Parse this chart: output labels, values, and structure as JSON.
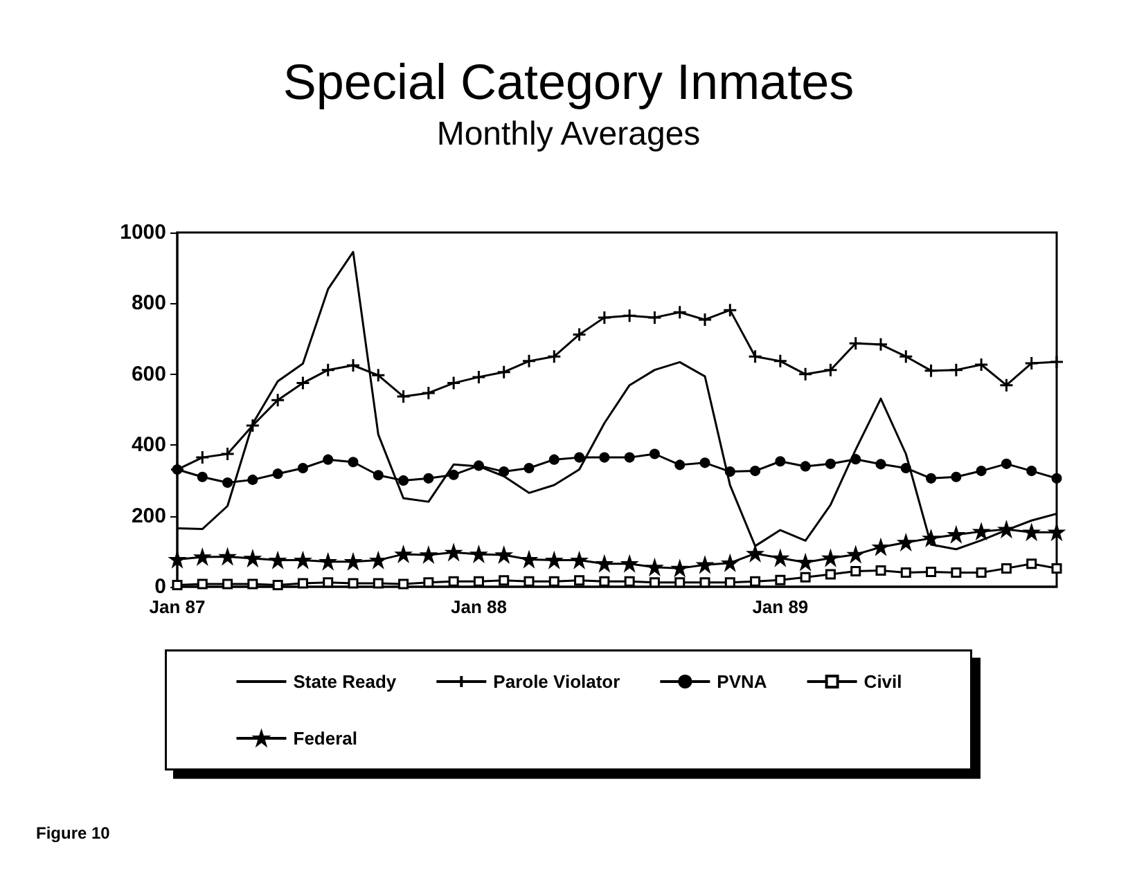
{
  "chart_data": {
    "type": "line",
    "title": "Special Category Inmates",
    "subtitle": "Monthly Averages",
    "categories": [
      "Jan 87",
      null,
      null,
      null,
      null,
      null,
      null,
      null,
      null,
      null,
      null,
      null,
      "Jan 88",
      null,
      null,
      null,
      null,
      null,
      null,
      null,
      null,
      null,
      null,
      null,
      "Jan 89",
      null,
      null,
      null,
      null,
      null,
      null,
      null,
      null,
      null,
      null,
      null
    ],
    "series": [
      {
        "name": "State Ready",
        "color": "#000000",
        "marker": "none",
        "values": [
          165,
          163,
          228,
          460,
          580,
          630,
          840,
          945,
          430,
          250,
          240,
          345,
          340,
          312,
          265,
          287,
          331,
          462,
          569,
          612,
          634,
          594,
          287,
          115,
          160,
          130,
          231,
          387,
          531,
          375,
          119,
          106,
          131,
          160,
          187,
          206
        ]
      },
      {
        "name": "Parole Violator",
        "color": "#000000",
        "marker": "cross",
        "values": [
          331,
          365,
          375,
          455,
          527,
          575,
          612,
          625,
          597,
          537,
          547,
          575,
          592,
          606,
          637,
          650,
          712,
          760,
          765,
          760,
          775,
          754,
          781,
          650,
          637,
          600,
          612,
          687,
          684,
          650,
          610,
          612,
          627,
          569,
          631,
          635
        ]
      },
      {
        "name": "PVNA",
        "color": "#000000",
        "marker": "circle",
        "values": [
          331,
          310,
          294,
          302,
          319,
          335,
          359,
          352,
          315,
          300,
          306,
          316,
          342,
          325,
          335,
          359,
          365,
          365,
          365,
          375,
          344,
          350,
          325,
          327,
          354,
          340,
          347,
          360,
          346,
          335,
          306,
          310,
          327,
          347,
          327,
          306
        ]
      },
      {
        "name": "Civil",
        "color": "#000000",
        "marker": "square",
        "values": [
          5,
          8,
          8,
          8,
          5,
          10,
          12,
          10,
          10,
          8,
          12,
          15,
          15,
          18,
          15,
          15,
          18,
          15,
          15,
          12,
          12,
          12,
          12,
          15,
          19,
          27,
          35,
          44,
          46,
          40,
          42,
          40,
          40,
          52,
          65,
          52
        ]
      },
      {
        "name": "Federal",
        "color": "#000000",
        "marker": "star",
        "values": [
          77,
          84,
          85,
          80,
          75,
          75,
          71,
          71,
          75,
          92,
          90,
          97,
          92,
          90,
          77,
          75,
          75,
          65,
          65,
          55,
          52,
          62,
          67,
          94,
          81,
          69,
          81,
          91,
          112,
          125,
          137,
          147,
          156,
          162,
          154,
          154
        ]
      }
    ],
    "ylim": [
      0,
      1000
    ],
    "yticks": [
      0,
      200,
      400,
      600,
      800,
      1000
    ],
    "grid": false,
    "legend": "bottom",
    "annotations": [
      "Figure 10"
    ]
  }
}
